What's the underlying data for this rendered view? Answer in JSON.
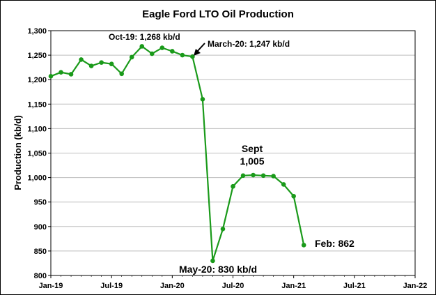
{
  "chart_data": {
    "type": "line",
    "title": "Eagle Ford LTO Oil Production",
    "ylabel": "Production (kb/d)",
    "xlabel": "",
    "ylim": [
      800,
      1300
    ],
    "yticks": [
      "800",
      "850",
      "900",
      "950",
      "1,000",
      "1,050",
      "1,100",
      "1,150",
      "1,200",
      "1,250",
      "1,300"
    ],
    "xlim": [
      "2019-01",
      "2022-01"
    ],
    "xticks": [
      "Jan-19",
      "Jul-19",
      "Jan-20",
      "Jul-20",
      "Jan-21",
      "Jul-21",
      "Jan-22"
    ],
    "grid": true,
    "legend": "none",
    "line_color": "#1a9a1a",
    "series": [
      {
        "x": [
          "2019-01",
          "2019-02",
          "2019-03",
          "2019-04",
          "2019-05",
          "2019-06",
          "2019-07",
          "2019-08",
          "2019-09",
          "2019-10",
          "2019-11",
          "2019-12",
          "2020-01",
          "2020-02",
          "2020-03",
          "2020-04",
          "2020-05",
          "2020-06",
          "2020-07",
          "2020-08",
          "2020-09",
          "2020-10",
          "2020-11",
          "2020-12",
          "2021-01",
          "2021-02"
        ],
        "values": [
          1207,
          1215,
          1211,
          1241,
          1228,
          1235,
          1232,
          1212,
          1246,
          1268,
          1253,
          1265,
          1258,
          1250,
          1247,
          1160,
          830,
          895,
          982,
          1004,
          1005,
          1004,
          1003,
          986,
          962,
          862
        ]
      }
    ],
    "annotations": {
      "peak": "Oct-19: 1,268 kb/d",
      "march": "March-20: 1,247 kb/d",
      "sept_line1": "Sept",
      "sept_line2": "1,005",
      "may": "May-20: 830 kb/d",
      "feb": "Feb: 862"
    }
  }
}
